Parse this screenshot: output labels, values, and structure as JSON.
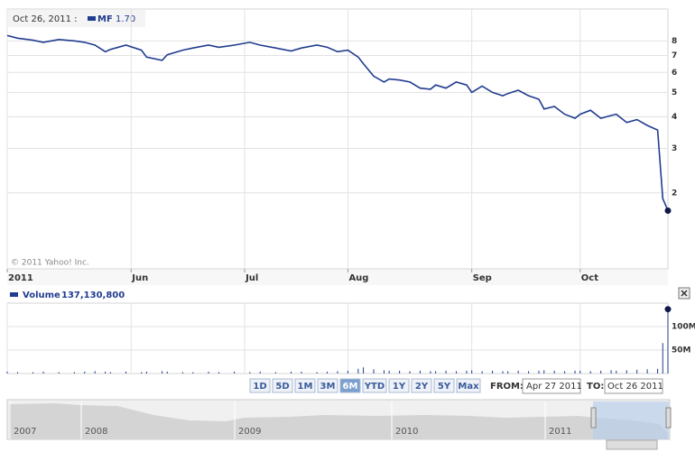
{
  "chart_data": [
    {
      "type": "line",
      "header_date": "Oct 26, 2011 :",
      "legend_value": "1.70",
      "copyright": "© 2011 Yahoo! Inc.",
      "x": [
        0,
        2,
        5,
        7,
        10,
        13,
        15,
        17,
        19,
        20,
        23,
        26,
        27,
        30,
        31,
        34,
        36,
        39,
        41,
        44,
        47,
        49,
        52,
        55,
        57,
        60,
        62,
        64,
        66,
        68,
        69,
        71,
        73,
        74,
        76,
        78,
        80,
        82,
        83,
        85,
        87,
        89,
        90,
        92,
        94,
        96,
        97,
        99,
        101,
        103,
        104,
        106,
        108,
        110,
        111,
        113,
        115,
        117,
        118,
        120,
        122,
        124,
        126,
        127,
        128
      ],
      "series": [
        {
          "name": "MF",
          "color": "#213c8f",
          "values": [
            8.4,
            8.2,
            8.05,
            7.9,
            8.1,
            8.0,
            7.9,
            7.7,
            7.25,
            7.4,
            7.7,
            7.35,
            6.9,
            6.7,
            7.05,
            7.35,
            7.5,
            7.7,
            7.55,
            7.7,
            7.9,
            7.7,
            7.5,
            7.3,
            7.5,
            7.7,
            7.55,
            7.25,
            7.35,
            6.9,
            6.5,
            5.8,
            5.5,
            5.65,
            5.6,
            5.5,
            5.2,
            5.15,
            5.35,
            5.2,
            5.5,
            5.35,
            5.0,
            5.3,
            5.0,
            4.85,
            4.95,
            5.1,
            4.85,
            4.7,
            4.3,
            4.4,
            4.1,
            3.95,
            4.1,
            4.25,
            3.95,
            4.05,
            4.1,
            3.8,
            3.9,
            3.7,
            3.55,
            1.9,
            1.7
          ]
        }
      ],
      "xlim": [
        0,
        128
      ],
      "xticks": [
        {
          "value": 0,
          "label": "2011"
        },
        {
          "value": 24,
          "label": "Jun"
        },
        {
          "value": 46,
          "label": "Jul"
        },
        {
          "value": 66,
          "label": "Aug"
        },
        {
          "value": 90,
          "label": "Sep"
        },
        {
          "value": 111,
          "label": "Oct"
        }
      ],
      "ylim": [
        1,
        10.7
      ],
      "yticks": [
        2,
        3,
        4,
        5,
        6,
        7,
        8
      ],
      "log_scale": true,
      "grid": true
    },
    {
      "type": "bar",
      "legend_value": "137,130,800",
      "x": [
        0,
        2,
        5,
        7,
        10,
        13,
        15,
        17,
        19,
        20,
        23,
        26,
        27,
        30,
        31,
        34,
        36,
        39,
        41,
        44,
        47,
        49,
        52,
        55,
        57,
        60,
        62,
        64,
        66,
        68,
        69,
        71,
        73,
        74,
        76,
        78,
        80,
        82,
        83,
        85,
        87,
        89,
        90,
        92,
        94,
        96,
        97,
        99,
        101,
        103,
        104,
        106,
        108,
        110,
        111,
        113,
        115,
        117,
        118,
        120,
        122,
        124,
        126,
        127,
        128
      ],
      "series": [
        {
          "name": "Volume",
          "color": "#213c8f",
          "values": [
            4,
            3,
            3,
            4,
            3,
            3,
            4,
            5,
            4,
            3,
            4,
            3,
            4,
            5,
            4,
            3,
            3,
            4,
            3,
            4,
            3,
            4,
            3,
            4,
            4,
            3,
            4,
            5,
            6,
            10,
            13,
            9,
            7,
            6,
            6,
            5,
            6,
            5,
            5,
            6,
            5,
            6,
            7,
            5,
            6,
            5,
            5,
            6,
            5,
            6,
            7,
            6,
            5,
            6,
            6,
            5,
            6,
            7,
            6,
            7,
            8,
            9,
            10,
            65,
            137.1308
          ]
        }
      ],
      "xlim": [
        0,
        128
      ],
      "xticks": [
        0,
        24,
        46,
        66,
        90,
        111
      ],
      "ylim": [
        0,
        150
      ],
      "yticks": [
        {
          "value": 50,
          "label": "50M"
        },
        {
          "value": 100,
          "label": "100M"
        }
      ],
      "grid": true
    }
  ],
  "range_buttons": [
    "1D",
    "5D",
    "1M",
    "3M",
    "6M",
    "YTD",
    "1Y",
    "2Y",
    "5Y",
    "Max"
  ],
  "active_range": "6M",
  "from_label": "FROM:",
  "from_date": "Apr 27 2011",
  "to_label": "TO:",
  "to_date": "Oct 26 2011",
  "navigator_years": [
    "2007",
    "2008",
    "2009",
    "2010",
    "2011"
  ]
}
